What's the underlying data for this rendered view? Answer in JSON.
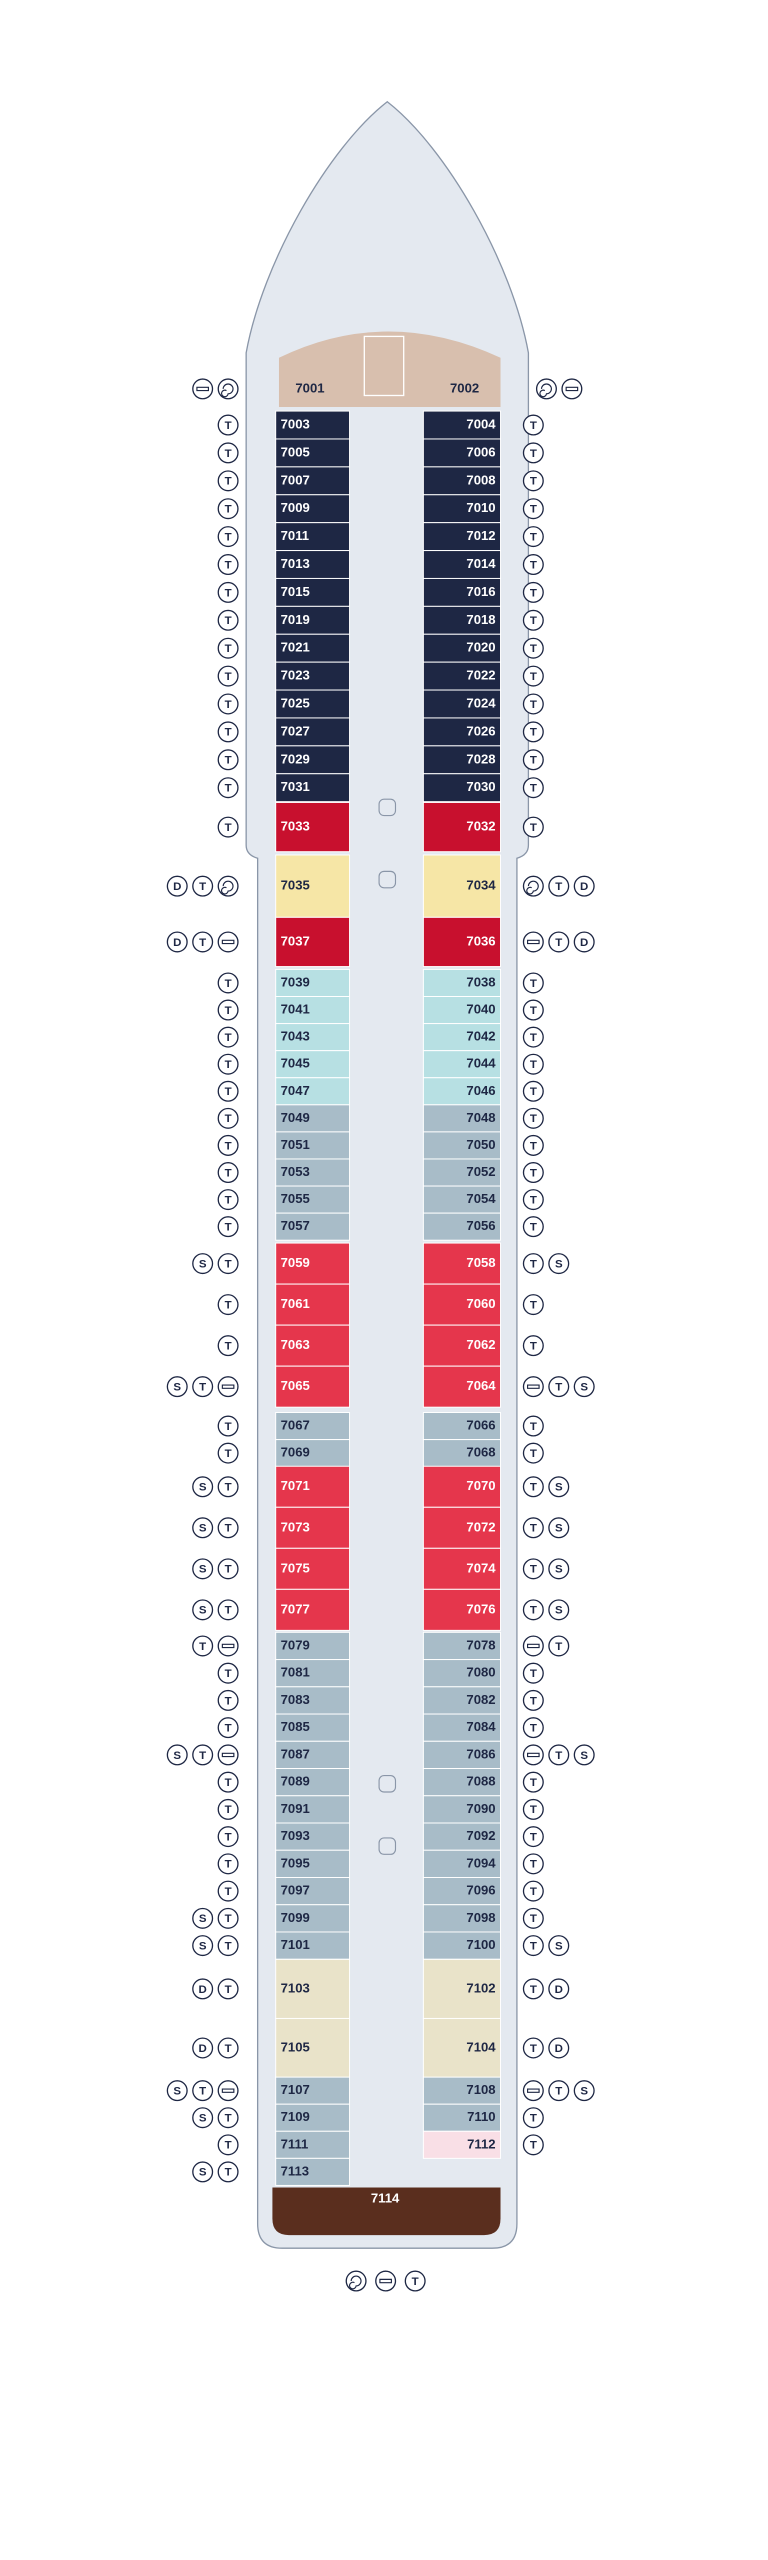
{
  "deck": {
    "rows": [
      {
        "left": "7001",
        "right": "7002",
        "color": "#d8bfae",
        "left_icons": [],
        "right_icons": []
      },
      {
        "left": "7003",
        "right": "7004",
        "color": "#1e2744",
        "left_icons": [
          "T"
        ],
        "right_icons": [
          "T"
        ]
      },
      {
        "left": "7005",
        "right": "7006",
        "color": "#1e2744",
        "left_icons": [
          "T"
        ],
        "right_icons": [
          "T"
        ]
      },
      {
        "left": "7007",
        "right": "7008",
        "color": "#1e2744",
        "left_icons": [
          "T"
        ],
        "right_icons": [
          "T"
        ]
      },
      {
        "left": "7009",
        "right": "7010",
        "color": "#1e2744",
        "left_icons": [
          "T"
        ],
        "right_icons": [
          "T"
        ]
      },
      {
        "left": "7011",
        "right": "7012",
        "color": "#1e2744",
        "left_icons": [
          "T"
        ],
        "right_icons": [
          "T"
        ]
      },
      {
        "left": "7013",
        "right": "7014",
        "color": "#1e2744",
        "left_icons": [
          "T"
        ],
        "right_icons": [
          "T"
        ]
      },
      {
        "left": "7015",
        "right": "7016",
        "color": "#1e2744",
        "left_icons": [
          "T"
        ],
        "right_icons": [
          "T"
        ]
      },
      {
        "left": "7019",
        "right": "7018",
        "color": "#1e2744",
        "left_icons": [
          "T"
        ],
        "right_icons": [
          "T"
        ]
      },
      {
        "left": "7021",
        "right": "7020",
        "color": "#1e2744",
        "left_icons": [
          "T"
        ],
        "right_icons": [
          "T"
        ]
      },
      {
        "left": "7023",
        "right": "7022",
        "color": "#1e2744",
        "left_icons": [
          "T"
        ],
        "right_icons": [
          "T"
        ]
      },
      {
        "left": "7025",
        "right": "7024",
        "color": "#1e2744",
        "left_icons": [
          "T"
        ],
        "right_icons": [
          "T"
        ]
      },
      {
        "left": "7027",
        "right": "7026",
        "color": "#1e2744",
        "left_icons": [
          "T"
        ],
        "right_icons": [
          "T"
        ]
      },
      {
        "left": "7029",
        "right": "7028",
        "color": "#1e2744",
        "left_icons": [
          "T"
        ],
        "right_icons": [
          "T"
        ]
      },
      {
        "left": "7031",
        "right": "7030",
        "color": "#1e2744",
        "left_icons": [
          "T"
        ],
        "right_icons": [
          "T"
        ]
      },
      {
        "left": "7033",
        "right": "7032",
        "color": "#c8102e",
        "left_icons": [
          "T"
        ],
        "right_icons": [
          "T"
        ]
      },
      {
        "left": "7035",
        "right": "7034",
        "color": "#f6e6a6",
        "left_icons": [
          "D",
          "T"
        ],
        "right_icons": [
          "T",
          "D"
        ]
      },
      {
        "left": "7037",
        "right": "7036",
        "color": "#c8102e",
        "left_icons": [
          "D",
          "T"
        ],
        "right_icons": [
          "T",
          "D"
        ]
      },
      {
        "left": "7039",
        "right": "7038",
        "color": "#b7e0e3",
        "left_icons": [
          "T"
        ],
        "right_icons": [
          "T"
        ]
      },
      {
        "left": "7041",
        "right": "7040",
        "color": "#b7e0e3",
        "left_icons": [
          "T"
        ],
        "right_icons": [
          "T"
        ]
      },
      {
        "left": "7043",
        "right": "7042",
        "color": "#b7e0e3",
        "left_icons": [
          "T"
        ],
        "right_icons": [
          "T"
        ]
      },
      {
        "left": "7045",
        "right": "7044",
        "color": "#b7e0e3",
        "left_icons": [
          "T"
        ],
        "right_icons": [
          "T"
        ]
      },
      {
        "left": "7047",
        "right": "7046",
        "color": "#b7e0e3",
        "left_icons": [
          "T"
        ],
        "right_icons": [
          "T"
        ]
      },
      {
        "left": "7049",
        "right": "7048",
        "color": "#a8bcc8",
        "left_icons": [
          "T"
        ],
        "right_icons": [
          "T"
        ]
      },
      {
        "left": "7051",
        "right": "7050",
        "color": "#a8bcc8",
        "left_icons": [
          "T"
        ],
        "right_icons": [
          "T"
        ]
      },
      {
        "left": "7053",
        "right": "7052",
        "color": "#a8bcc8",
        "left_icons": [
          "T"
        ],
        "right_icons": [
          "T"
        ]
      },
      {
        "left": "7055",
        "right": "7054",
        "color": "#a8bcc8",
        "left_icons": [
          "T"
        ],
        "right_icons": [
          "T"
        ]
      },
      {
        "left": "7057",
        "right": "7056",
        "color": "#a8bcc8",
        "left_icons": [
          "T"
        ],
        "right_icons": [
          "T"
        ]
      },
      {
        "left": "7059",
        "right": "7058",
        "color": "#e5364c",
        "left_icons": [
          "S",
          "T"
        ],
        "right_icons": [
          "T",
          "S"
        ]
      },
      {
        "left": "7061",
        "right": "7060",
        "color": "#e5364c",
        "left_icons": [
          "T"
        ],
        "right_icons": [
          "T"
        ]
      },
      {
        "left": "7063",
        "right": "7062",
        "color": "#e5364c",
        "left_icons": [
          "T"
        ],
        "right_icons": [
          "T"
        ]
      },
      {
        "left": "7065",
        "right": "7064",
        "color": "#e5364c",
        "left_icons": [
          "S",
          "T"
        ],
        "right_icons": [
          "T",
          "S"
        ]
      },
      {
        "left": "7067",
        "right": "7066",
        "color": "#a8bcc8",
        "left_icons": [
          "T"
        ],
        "right_icons": [
          "T"
        ]
      },
      {
        "left": "7069",
        "right": "7068",
        "color": "#a8bcc8",
        "left_icons": [
          "T"
        ],
        "right_icons": [
          "T"
        ]
      },
      {
        "left": "7071",
        "right": "7070",
        "color": "#e5364c",
        "left_icons": [
          "S",
          "T"
        ],
        "right_icons": [
          "T",
          "S"
        ]
      },
      {
        "left": "7073",
        "right": "7072",
        "color": "#e5364c",
        "left_icons": [
          "S",
          "T"
        ],
        "right_icons": [
          "T",
          "S"
        ]
      },
      {
        "left": "7075",
        "right": "7074",
        "color": "#e5364c",
        "left_icons": [
          "S",
          "T"
        ],
        "right_icons": [
          "T",
          "S"
        ]
      },
      {
        "left": "7077",
        "right": "7076",
        "color": "#e5364c",
        "left_icons": [
          "S",
          "T"
        ],
        "right_icons": [
          "T",
          "S"
        ]
      },
      {
        "left": "7079",
        "right": "7078",
        "color": "#a8bcc8",
        "left_icons": [
          "T"
        ],
        "right_icons": [
          "T"
        ]
      },
      {
        "left": "7081",
        "right": "7080",
        "color": "#a8bcc8",
        "left_icons": [
          "T"
        ],
        "right_icons": [
          "T"
        ]
      },
      {
        "left": "7083",
        "right": "7082",
        "color": "#a8bcc8",
        "left_icons": [
          "T"
        ],
        "right_icons": [
          "T"
        ]
      },
      {
        "left": "7085",
        "right": "7084",
        "color": "#a8bcc8",
        "left_icons": [
          "T"
        ],
        "right_icons": [
          "T"
        ]
      },
      {
        "left": "7087",
        "right": "7086",
        "color": "#a8bcc8",
        "left_icons": [
          "S",
          "T"
        ],
        "right_icons": [
          "T",
          "S"
        ]
      },
      {
        "left": "7089",
        "right": "7088",
        "color": "#a8bcc8",
        "left_icons": [
          "T"
        ],
        "right_icons": [
          "T"
        ]
      },
      {
        "left": "7091",
        "right": "7090",
        "color": "#a8bcc8",
        "left_icons": [
          "T"
        ],
        "right_icons": [
          "T"
        ]
      },
      {
        "left": "7093",
        "right": "7092",
        "color": "#a8bcc8",
        "left_icons": [
          "T"
        ],
        "right_icons": [
          "T"
        ]
      },
      {
        "left": "7095",
        "right": "7094",
        "color": "#a8bcc8",
        "left_icons": [
          "T"
        ],
        "right_icons": [
          "T"
        ]
      },
      {
        "left": "7097",
        "right": "7096",
        "color": "#a8bcc8",
        "left_icons": [
          "T"
        ],
        "right_icons": [
          "T"
        ]
      },
      {
        "left": "7099",
        "right": "7098",
        "color": "#a8bcc8",
        "left_icons": [
          "S",
          "T"
        ],
        "right_icons": [
          "T"
        ]
      },
      {
        "left": "7101",
        "right": "7100",
        "color": "#a8bcc8",
        "left_icons": [
          "S",
          "T"
        ],
        "right_icons": [
          "T",
          "S"
        ]
      },
      {
        "left": "7103",
        "right": "7102",
        "color": "#e9e3c9",
        "left_icons": [
          "D",
          "T"
        ],
        "right_icons": [
          "T",
          "D"
        ]
      },
      {
        "left": "7105",
        "right": "7104",
        "color": "#e9e3c9",
        "left_icons": [
          "D",
          "T"
        ],
        "right_icons": [
          "T",
          "D"
        ]
      },
      {
        "left": "7107",
        "right": "7108",
        "color": "#a8bcc8",
        "left_icons": [
          "S",
          "T"
        ],
        "right_icons": [
          "T",
          "S"
        ]
      },
      {
        "left": "7109",
        "right": "7110",
        "color": "#a8bcc8",
        "left_icons": [
          "S",
          "T"
        ],
        "right_icons": [
          "T"
        ]
      },
      {
        "left": "7111",
        "right": "7112",
        "color": "#a8bcc8",
        "right_color": "#f9dfe6",
        "left_icons": [
          "T"
        ],
        "right_icons": [
          "T"
        ]
      },
      {
        "left": "7113",
        "right": null,
        "color": "#a8bcc8",
        "left_icons": [
          "S",
          "T"
        ],
        "right_icons": []
      }
    ],
    "aft_suite": "7114",
    "aft_color": "#5a2e1e",
    "stern_icons": [
      "T"
    ]
  }
}
